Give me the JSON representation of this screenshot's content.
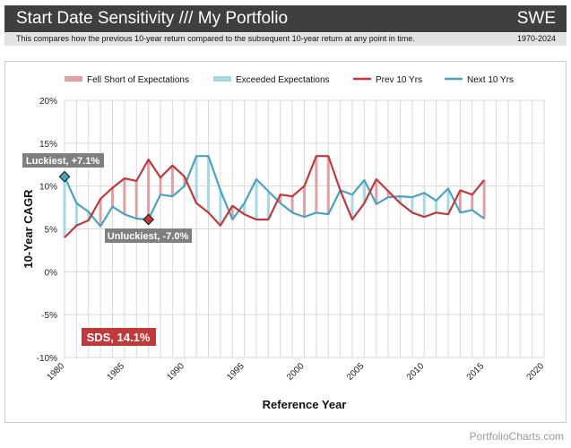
{
  "header": {
    "title": "Start Date Sensitivity /// My Portfolio",
    "code": "SWE",
    "description": "This compares how the previous 10-year return compared to the subsequent 10-year return at any point in time.",
    "range": "1970-2024"
  },
  "footer": {
    "site": "PortfolioCharts.com"
  },
  "colors": {
    "prev": "#c0393b",
    "next": "#4aa3c1",
    "fell_short_fill": "#e1a0a2",
    "exceeded_fill": "#a6d8e5",
    "grid": "#d9d9d9",
    "header_bg": "#3f3f3f",
    "callout_bg": "#7f7f7f",
    "sds_bg": "#c0393b"
  },
  "chart_data": {
    "type": "line",
    "x": [
      1980,
      1981,
      1982,
      1983,
      1984,
      1985,
      1986,
      1987,
      1988,
      1989,
      1990,
      1991,
      1992,
      1993,
      1994,
      1995,
      1996,
      1997,
      1998,
      1999,
      2000,
      2001,
      2002,
      2003,
      2004,
      2005,
      2006,
      2007,
      2008,
      2009,
      2010,
      2011,
      2012,
      2013,
      2014,
      2015
    ],
    "series": [
      {
        "name": "Prev 10 Yrs",
        "values": [
          4.0,
          5.4,
          6.0,
          8.5,
          9.8,
          10.9,
          10.6,
          13.1,
          11.0,
          12.4,
          11.1,
          8.0,
          6.9,
          5.4,
          7.7,
          6.7,
          6.1,
          6.1,
          9.0,
          8.8,
          10.0,
          13.5,
          13.5,
          9.5,
          6.1,
          8.0,
          10.8,
          9.4,
          8.0,
          6.9,
          6.4,
          6.9,
          6.7,
          9.5,
          9.0,
          10.7
        ]
      },
      {
        "name": "Next 10 Yrs",
        "values": [
          11.1,
          8.0,
          7.0,
          5.3,
          7.6,
          6.7,
          6.2,
          6.1,
          9.0,
          8.8,
          10.0,
          13.5,
          13.5,
          9.5,
          6.1,
          8.0,
          10.8,
          9.4,
          8.0,
          6.9,
          6.4,
          6.9,
          6.7,
          9.5,
          9.0,
          10.7,
          7.9,
          8.7,
          8.8,
          8.7,
          9.2,
          8.3,
          9.7,
          6.9,
          7.2,
          6.2
        ]
      }
    ],
    "band_legend": [
      "Fell Short of Expectations",
      "Exceeded Expectations"
    ],
    "xlabel": "Reference Year",
    "ylabel": "10-Year CAGR",
    "xlim": [
      1980,
      2020
    ],
    "ylim": [
      -10,
      20
    ],
    "x_ticks": [
      "1980",
      "1985",
      "1990",
      "1995",
      "2000",
      "2005",
      "2010",
      "2015",
      "2020"
    ],
    "y_ticks": [
      "20%",
      "15%",
      "10%",
      "5%",
      "0%",
      "-5%",
      "-10%"
    ],
    "legend_position": "top",
    "grid": true,
    "annotations": {
      "luckiest": {
        "label": "Luckiest, +7.1%",
        "year": 1980,
        "value": 11.1
      },
      "unluckiest": {
        "label": "Unluckiest, -7.0%",
        "year": 1987,
        "value": 6.1
      },
      "sds": {
        "label": "SDS, 14.1%"
      }
    }
  }
}
